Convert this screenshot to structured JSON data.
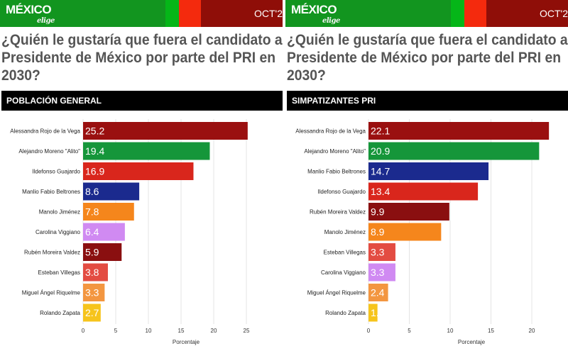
{
  "header": {
    "logo": "MÉXICO",
    "logo_sub": "elige",
    "date": "OCT'2"
  },
  "title": "¿Quién le gustaría que fuera el candidato a Presidente de México por parte del PRI en 2030?",
  "chart_data": [
    {
      "type": "bar",
      "orientation": "horizontal",
      "title": "POBLACIÓN GENERAL",
      "xlabel": "Porcentaje",
      "xlim": [
        0,
        25
      ],
      "xticks": [
        0,
        5,
        10,
        15,
        20,
        25
      ],
      "categories": [
        "Alessandra Rojo de la Vega",
        "Alejandro Moreno \"Alito\"",
        "Ildefonso Guajardo",
        "Manlio Fabio Beltrones",
        "Manolo Jiménez",
        "Carolina Viggiano",
        "Rubén Moreira Valdez",
        "Esteban Villegas",
        "Miguel Ángel Riquelme",
        "Rolando Zapata"
      ],
      "values": [
        25.2,
        19.4,
        16.9,
        8.6,
        7.8,
        6.4,
        5.9,
        3.8,
        3.3,
        2.7
      ],
      "colors": [
        "#9a1010",
        "#15963a",
        "#d9261c",
        "#1b2a8e",
        "#f5861c",
        "#d08af2",
        "#8a0f10",
        "#e34c42",
        "#f39640",
        "#f6c41c"
      ]
    },
    {
      "type": "bar",
      "orientation": "horizontal",
      "title": "SIMPATIZANTES PRI",
      "xlabel": "Porcentaje",
      "xlim": [
        0,
        20
      ],
      "xticks": [
        0,
        5,
        10,
        15,
        20
      ],
      "categories": [
        "Alessandra Rojo de la Vega",
        "Alejandro Moreno \"Alito\"",
        "Manlio Fabio Beltrones",
        "Ildefonso Guajardo",
        "Rubén Moreira Valdez",
        "Manolo Jiménez",
        "Esteban Villegas",
        "Carolina Viggiano",
        "Miguel Ángel Riquelme",
        "Rolando Zapata"
      ],
      "values": [
        22.1,
        20.9,
        14.7,
        13.4,
        9.9,
        8.9,
        3.3,
        3.3,
        2.4,
        1.1
      ],
      "colors": [
        "#9a1010",
        "#15963a",
        "#1b2a8e",
        "#d9261c",
        "#8a0f10",
        "#f5861c",
        "#e34c42",
        "#d08af2",
        "#f39640",
        "#f6c41c"
      ]
    }
  ]
}
